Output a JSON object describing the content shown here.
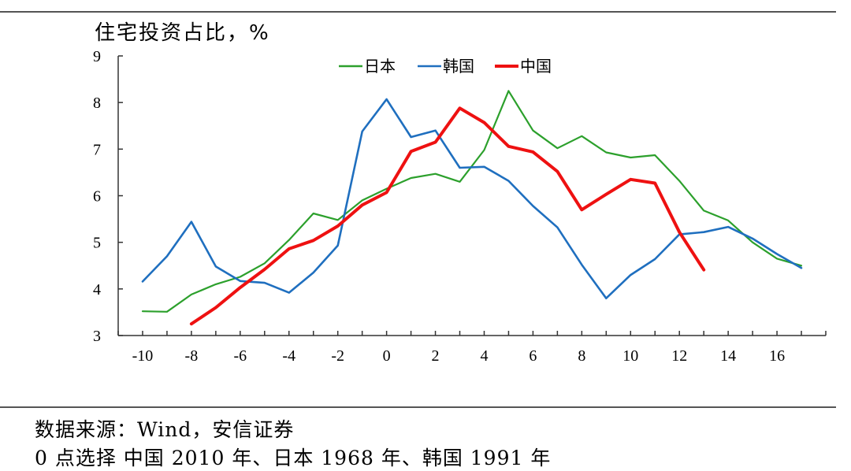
{
  "chart_data": {
    "type": "line",
    "ylabel": "住宅投资占比，%",
    "xlabel": "",
    "xlim": [
      -11,
      18
    ],
    "ylim": [
      3,
      9
    ],
    "x_ticks": [
      -10,
      -8,
      -6,
      -4,
      -2,
      0,
      2,
      4,
      6,
      8,
      10,
      12,
      14,
      16
    ],
    "y_ticks": [
      3,
      4,
      5,
      6,
      7,
      8,
      9
    ],
    "legend_position": "top-center",
    "series": [
      {
        "name": "日本",
        "color": "#2ca02c",
        "width": 2.2,
        "x": [
          -10,
          -9,
          -8,
          -7,
          -6,
          -5,
          -4,
          -3,
          -2,
          -1,
          0,
          1,
          2,
          3,
          4,
          5,
          6,
          7,
          8,
          9,
          10,
          11,
          12,
          13,
          14,
          15,
          16,
          17
        ],
        "y": [
          3.52,
          3.51,
          3.88,
          4.1,
          4.26,
          4.55,
          5.05,
          5.62,
          5.48,
          5.9,
          6.15,
          6.38,
          6.47,
          6.3,
          6.98,
          8.25,
          7.4,
          7.02,
          7.28,
          6.93,
          6.82,
          6.87,
          6.32,
          5.68,
          5.47,
          5.0,
          4.65,
          4.5
        ]
      },
      {
        "name": "韩国",
        "color": "#1f6fbf",
        "width": 2.6,
        "x": [
          -10,
          -9,
          -8,
          -7,
          -6,
          -5,
          -4,
          -3,
          -2,
          -1,
          0,
          1,
          2,
          3,
          4,
          5,
          6,
          7,
          8,
          9,
          10,
          11,
          12,
          13,
          14,
          15,
          16,
          17
        ],
        "y": [
          4.16,
          4.7,
          5.44,
          4.48,
          4.17,
          4.13,
          3.92,
          4.35,
          4.93,
          7.38,
          8.07,
          7.26,
          7.4,
          6.6,
          6.62,
          6.32,
          5.78,
          5.32,
          4.52,
          3.8,
          4.3,
          4.64,
          5.17,
          5.22,
          5.33,
          5.08,
          4.75,
          4.45
        ]
      },
      {
        "name": "中国",
        "color": "#ee1111",
        "width": 4,
        "x": [
          -8,
          -7,
          -6,
          -5,
          -4,
          -3,
          -2,
          -1,
          0,
          1,
          2,
          3,
          4,
          5,
          6,
          7,
          8,
          9,
          10,
          11,
          12,
          13
        ],
        "y": [
          3.25,
          3.6,
          4.03,
          4.42,
          4.86,
          5.04,
          5.35,
          5.8,
          6.07,
          6.95,
          7.15,
          7.88,
          7.57,
          7.06,
          6.94,
          6.52,
          5.7,
          6.03,
          6.35,
          6.27,
          5.22,
          4.41
        ]
      }
    ]
  },
  "source_note": "数据来源：Wind，安信证券",
  "footnote": "0 点选择 中国 2010 年、日本 1968 年、韩国 1991 年"
}
